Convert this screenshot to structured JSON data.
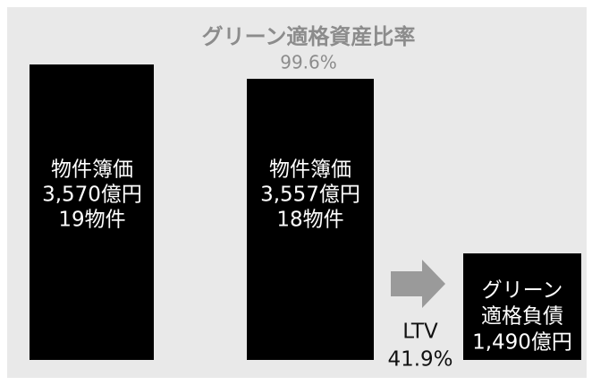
{
  "title": "グリーン適格資産比率",
  "ratio": "99.6%",
  "blocks": [
    {
      "lines": [
        "物件簿価",
        "3,570億円",
        "19物件"
      ]
    },
    {
      "lines": [
        "物件簿価",
        "3,557億円",
        "18物件"
      ]
    },
    {
      "lines": [
        "グリーン",
        "適格負債",
        "1,490億円"
      ]
    }
  ],
  "ltv": {
    "label": "LTV",
    "value": "41.9%"
  }
}
